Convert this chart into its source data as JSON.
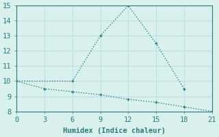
{
  "line1_x": [
    0,
    6,
    9,
    12,
    15,
    18
  ],
  "line1_y": [
    10,
    10,
    13,
    15,
    12.5,
    9.5
  ],
  "line2_x": [
    0,
    3,
    6,
    9,
    12,
    15,
    18,
    21
  ],
  "line2_y": [
    10,
    9.5,
    9.3,
    9.1,
    8.8,
    8.6,
    8.3,
    8.0
  ],
  "line_color": "#2a7d6e",
  "bg_color": "#d8f0ee",
  "grid_color": "#c0dedd",
  "xlabel": "Humidex (Indice chaleur)",
  "xlim": [
    0,
    21
  ],
  "ylim": [
    8,
    15
  ],
  "xticks": [
    0,
    3,
    6,
    9,
    12,
    15,
    18,
    21
  ],
  "yticks": [
    8,
    9,
    10,
    11,
    12,
    13,
    14,
    15
  ],
  "markersize": 3,
  "linewidth": 1.0,
  "xlabel_fontsize": 7.5,
  "tick_fontsize": 7.5
}
